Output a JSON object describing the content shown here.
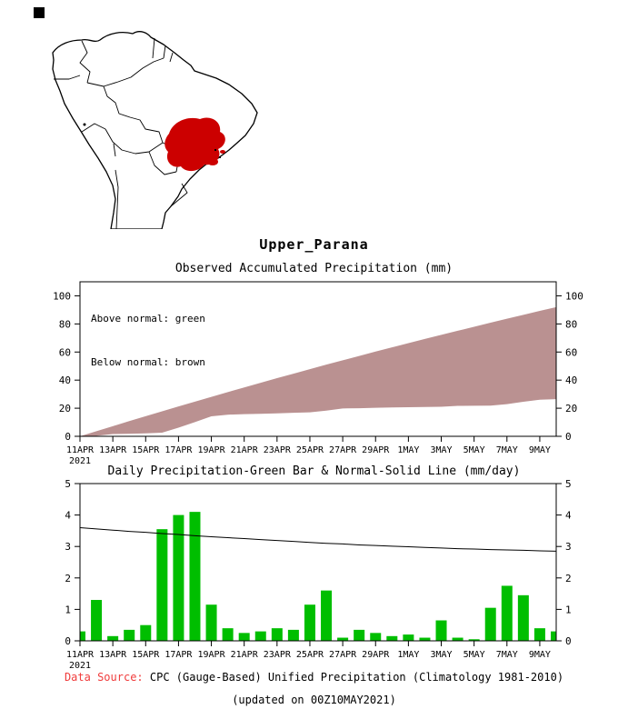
{
  "page": {
    "title": "Upper_Parana",
    "footer": {
      "label": "Data Source:",
      "label_color": "#f03c3c",
      "text": "CPC (Gauge-Based) Unified Precipitation (Climatology 1981-2010)",
      "updated": "(updated on 00Z10MAY2021)"
    }
  },
  "map": {
    "region_name": "Upper_Parana",
    "region_color": "#cc0000",
    "outline_color": "#000000"
  },
  "chart_data": [
    {
      "type": "area",
      "title": "Observed Accumulated Precipitation (mm)",
      "legend_note": [
        "Above normal: green",
        "Below normal: brown"
      ],
      "ylim": [
        0,
        110
      ],
      "yticks": [
        0,
        20,
        40,
        60,
        80,
        100
      ],
      "n_days": 30,
      "x_tick_step_days": 2,
      "x_tick_labels": [
        "11APR",
        "13APR",
        "15APR",
        "17APR",
        "19APR",
        "21APR",
        "23APR",
        "25APR",
        "27APR",
        "29APR",
        "1MAY",
        "3MAY",
        "5MAY",
        "7MAY",
        "9MAY"
      ],
      "x_first_sublabel": "2021",
      "fill_color": "#ba9191",
      "series": [
        {
          "name": "normal_accumulated",
          "values": [
            0,
            3.6,
            7.2,
            10.8,
            14.3,
            17.8,
            21.3,
            24.7,
            28.1,
            31.5,
            34.8,
            38.1,
            41.4,
            44.6,
            47.8,
            51.0,
            54.1,
            57.2,
            60.3,
            63.3,
            66.3,
            69.3,
            72.2,
            75.1,
            78.0,
            80.9,
            83.7,
            86.5,
            89.3,
            92.0
          ]
        },
        {
          "name": "observed_accumulated",
          "values": [
            0,
            0.3,
            1.6,
            1.75,
            2.1,
            2.6,
            6.15,
            10.15,
            14.25,
            15.4,
            15.8,
            16.05,
            16.35,
            16.75,
            17.1,
            18.25,
            19.85,
            19.95,
            20.3,
            20.55,
            20.7,
            20.9,
            21.0,
            21.65,
            21.75,
            21.8,
            22.85,
            24.6,
            26.05,
            26.45
          ]
        }
      ]
    },
    {
      "type": "bar_line",
      "title": "Daily Precipitation-Green Bar & Normal-Solid Line (mm/day)",
      "ylim": [
        0,
        5
      ],
      "yticks": [
        0,
        1,
        2,
        3,
        4,
        5
      ],
      "n_days": 30,
      "x_tick_step_days": 2,
      "x_tick_labels": [
        "11APR",
        "13APR",
        "15APR",
        "17APR",
        "19APR",
        "21APR",
        "23APR",
        "25APR",
        "27APR",
        "29APR",
        "1MAY",
        "3MAY",
        "5MAY",
        "7MAY",
        "9MAY"
      ],
      "x_first_sublabel": "2021",
      "bar_color": "#00be00",
      "line_color": "#000000",
      "bars": {
        "name": "daily_precipitation",
        "values": [
          0.3,
          1.3,
          0.15,
          0.35,
          0.5,
          3.55,
          4.0,
          4.1,
          1.15,
          0.4,
          0.25,
          0.3,
          0.4,
          0.35,
          1.15,
          1.6,
          0.1,
          0.35,
          0.25,
          0.15,
          0.2,
          0.1,
          0.65,
          0.1,
          0.05,
          1.05,
          1.75,
          1.45,
          0.4,
          0.3
        ]
      },
      "line": {
        "name": "normal_daily",
        "values": [
          3.6,
          3.56,
          3.52,
          3.48,
          3.45,
          3.41,
          3.38,
          3.34,
          3.31,
          3.28,
          3.25,
          3.22,
          3.19,
          3.16,
          3.13,
          3.1,
          3.08,
          3.05,
          3.03,
          3.01,
          2.99,
          2.97,
          2.95,
          2.93,
          2.92,
          2.9,
          2.89,
          2.88,
          2.86,
          2.85
        ]
      }
    }
  ]
}
